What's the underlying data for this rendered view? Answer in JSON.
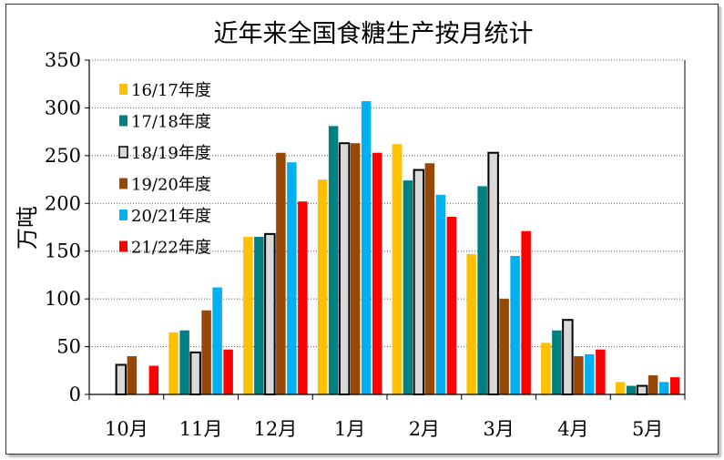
{
  "chart_data": {
    "type": "bar",
    "title": "近年来全国食糖生产按月统计",
    "ylabel": "万吨",
    "xlabel": "",
    "ylim": [
      0,
      350
    ],
    "yticks": [
      0,
      50,
      100,
      150,
      200,
      250,
      300,
      350
    ],
    "grid": "horizontal-dotted",
    "legend_position": "top-left",
    "categories": [
      "10月",
      "11月",
      "12月",
      "1月",
      "2月",
      "3月",
      "4月",
      "5月"
    ],
    "series": [
      {
        "name": "16/17年度",
        "color": "#FFC000",
        "values": [
          0,
          65,
          165,
          225,
          262,
          147,
          54,
          13
        ]
      },
      {
        "name": "17/18年度",
        "color": "#008080",
        "values": [
          0,
          67,
          165,
          281,
          224,
          218,
          67,
          9
        ]
      },
      {
        "name": "18/19年度",
        "color": "#D9D9D9",
        "values": [
          31,
          44,
          168,
          263,
          235,
          253,
          78,
          9
        ]
      },
      {
        "name": "19/20年度",
        "color": "#974706",
        "values": [
          40,
          88,
          253,
          263,
          242,
          100,
          40,
          20
        ]
      },
      {
        "name": "20/21年度",
        "color": "#00B0F0",
        "values": [
          0,
          112,
          243,
          307,
          209,
          145,
          42,
          13
        ]
      },
      {
        "name": "21/22年度",
        "color": "#FF0000",
        "values": [
          30,
          47,
          202,
          253,
          186,
          171,
          47,
          18
        ]
      }
    ]
  }
}
